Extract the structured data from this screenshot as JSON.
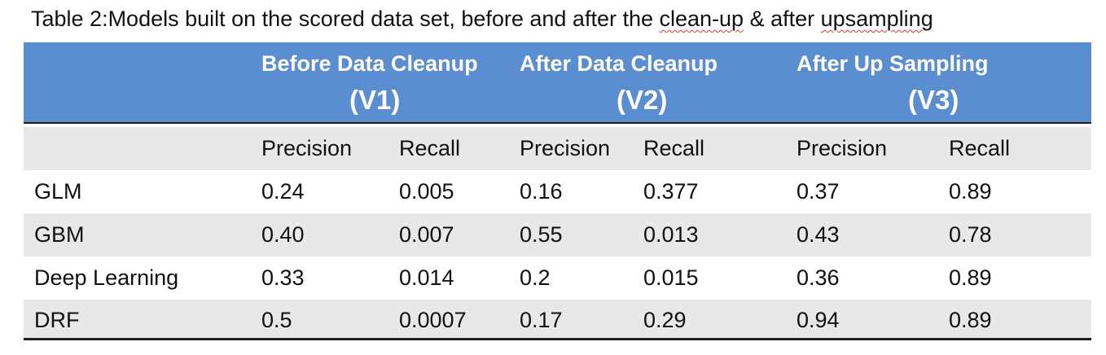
{
  "caption": {
    "prefix": "Table 2:Models built on the scored data set, before and after the ",
    "cleanup": "clean-up",
    "middle": " & after ",
    "upsampling": "upsampling"
  },
  "header": {
    "groups": [
      {
        "title": "Before Data Cleanup",
        "version": "(V1)"
      },
      {
        "title": "After Data Cleanup",
        "version": "(V2)"
      },
      {
        "title": "After Up Sampling",
        "version": "(V3)"
      }
    ]
  },
  "subheader": [
    "Precision",
    "Recall",
    "Precision",
    "Recall",
    "Precision",
    "Recall"
  ],
  "rows": [
    {
      "model": "GLM",
      "values": [
        "0.24",
        "0.005",
        "0.16",
        "0.377",
        "0.37",
        "0.89"
      ]
    },
    {
      "model": "GBM",
      "values": [
        "0.40",
        "0.007",
        "0.55",
        "0.013",
        "0.43",
        "0.78"
      ]
    },
    {
      "model": "Deep Learning",
      "values": [
        "0.33",
        "0.014",
        "0.2",
        "0.015",
        "0.36",
        "0.89"
      ]
    },
    {
      "model": "DRF",
      "values": [
        "0.5",
        "0.0007",
        "0.17",
        "0.29",
        "0.94",
        "0.89"
      ]
    }
  ],
  "colors": {
    "header_bg": "#5b8dd1",
    "shade_bg": "#e8e8e8",
    "rule": "#1e1e1e"
  }
}
